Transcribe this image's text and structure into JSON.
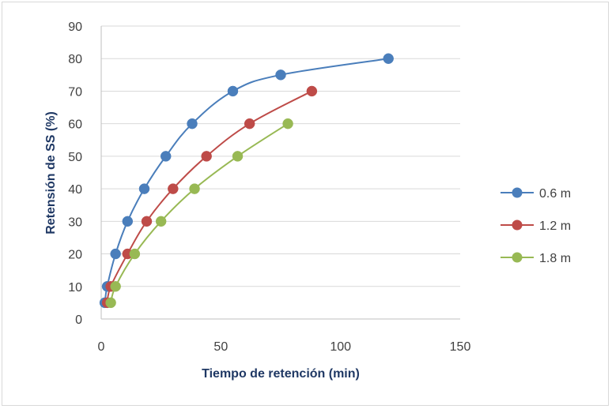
{
  "chart_data": {
    "type": "scatter",
    "title": "",
    "xlabel": "Tiempo de retención (min)",
    "ylabel": "Retensión de SS (%)",
    "xlim": [
      0,
      150
    ],
    "ylim": [
      0,
      90
    ],
    "xticks": [
      "0",
      "50",
      "100",
      "150"
    ],
    "yticks": [
      "0",
      "10",
      "20",
      "30",
      "40",
      "50",
      "60",
      "70",
      "80",
      "90"
    ],
    "grid": "horizontal",
    "legend_position": "right",
    "smooth_lines": true,
    "series": [
      {
        "name": "0.6 m",
        "color": "#4a7ebb",
        "x": [
          1.5,
          2.5,
          6,
          11,
          18,
          27,
          38,
          55,
          75,
          120
        ],
        "y": [
          5,
          10,
          20,
          30,
          40,
          50,
          60,
          70,
          75,
          80
        ]
      },
      {
        "name": "1.2 m",
        "color": "#be4b48",
        "x": [
          2.5,
          4,
          11,
          19,
          30,
          44,
          62,
          88
        ],
        "y": [
          5,
          10,
          20,
          30,
          40,
          50,
          60,
          70
        ]
      },
      {
        "name": "1.8 m",
        "color": "#98b954",
        "x": [
          4,
          6,
          14,
          25,
          39,
          57,
          78
        ],
        "y": [
          5,
          10,
          20,
          30,
          40,
          50,
          60
        ]
      }
    ]
  }
}
